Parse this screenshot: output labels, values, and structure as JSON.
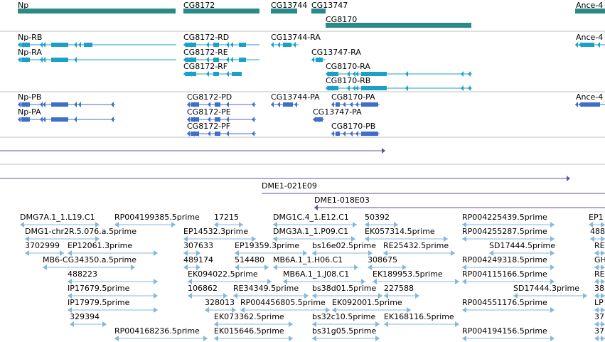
{
  "colors": {
    "gene": "#2a8a86",
    "transcript_mrna": "#1ba0c7",
    "transcript_protein": "#3e6fc9",
    "alignment": "#6a4f9e",
    "est": "#86b8de",
    "divider": "#bfbfbf"
  },
  "icons": [
    "arrow-right-icon",
    "arrow-left-icon"
  ],
  "tracks": {
    "genes": [
      {
        "label": "Np"
      },
      {
        "label": "CG8172"
      },
      {
        "label": "CG13744"
      },
      {
        "label": "CG13747"
      },
      {
        "label": "CG8170"
      },
      {
        "label": "Ance-4"
      }
    ],
    "transcripts": [
      {
        "label": "Np-RB"
      },
      {
        "label": "Np-RA"
      },
      {
        "label": "CG8172-RD"
      },
      {
        "label": "CG8172-RE"
      },
      {
        "label": "CG8172-RF"
      },
      {
        "label": "CG13744-RA"
      },
      {
        "label": "CG13747-RA"
      },
      {
        "label": "CG8170-RA"
      },
      {
        "label": "CG8170-RB"
      },
      {
        "label": "Ance-4"
      }
    ],
    "proteins": [
      {
        "label": "Np-PB"
      },
      {
        "label": "Np-PA"
      },
      {
        "label": "CG8172-PD"
      },
      {
        "label": "CG8172-PE"
      },
      {
        "label": "CG8172-PF"
      },
      {
        "label": "CG13744-PA"
      },
      {
        "label": "CG8170-PA"
      },
      {
        "label": "CG13747-PA"
      },
      {
        "label": "CG8170-PB"
      },
      {
        "label": "Ance-4"
      }
    ],
    "clones": [
      {
        "label": "DME1-021E09"
      },
      {
        "label": "DME1-018E03"
      }
    ],
    "ests": [
      {
        "label": "DMG7A.1_1.L19.C1"
      },
      {
        "label": "RP004199385.5prime"
      },
      {
        "label": "17215"
      },
      {
        "label": "DMG1C.4_1.E12.C1"
      },
      {
        "label": "50392"
      },
      {
        "label": "RP004225439.5prime"
      },
      {
        "label": "EP1"
      },
      {
        "label": "DMG1-chr2R.5.076.a.5prime"
      },
      {
        "label": "EP14532.3prime"
      },
      {
        "label": "DMG3A.1_1.P09.C1"
      },
      {
        "label": "EK057314.5prime"
      },
      {
        "label": "RP004255287.5prime"
      },
      {
        "label": "488"
      },
      {
        "label": "3702999"
      },
      {
        "label": "EP12061.3prime"
      },
      {
        "label": "307633"
      },
      {
        "label": "EP19359.3prime"
      },
      {
        "label": "bs16e02.5prime"
      },
      {
        "label": "RE25432.5prime"
      },
      {
        "label": "SD17444.5prime"
      },
      {
        "label": "RE"
      },
      {
        "label": "MB6-CG34350.a.5prime"
      },
      {
        "label": "489174"
      },
      {
        "label": "514480"
      },
      {
        "label": "MB6A.1_1.H06.C1"
      },
      {
        "label": "308675"
      },
      {
        "label": "RP004249318.5prime"
      },
      {
        "label": "GH"
      },
      {
        "label": "488223"
      },
      {
        "label": "EK094022.5prime"
      },
      {
        "label": "MB6A.1_1.J08.C1"
      },
      {
        "label": "EK189953.5prime"
      },
      {
        "label": "RP004115166.5prime"
      },
      {
        "label": "RE"
      },
      {
        "label": "IP17679.5prime"
      },
      {
        "label": "106862"
      },
      {
        "label": "RE34349.5prime"
      },
      {
        "label": "bs38d01.5prime"
      },
      {
        "label": "227588"
      },
      {
        "label": "SD17444.3prime"
      },
      {
        "label": "38"
      },
      {
        "label": "IP17979.5prime"
      },
      {
        "label": "328013"
      },
      {
        "label": "RP004456805.5prime"
      },
      {
        "label": "EK092001.5prime"
      },
      {
        "label": "RP004551176.5prime"
      },
      {
        "label": "LP"
      },
      {
        "label": "329394"
      },
      {
        "label": "EK073362.5prime"
      },
      {
        "label": "bs32c10.5prime"
      },
      {
        "label": "EK168116.5prime"
      },
      {
        "label": "37"
      },
      {
        "label": "RP004168236.5prime"
      },
      {
        "label": "EK015646.5prime"
      },
      {
        "label": "bs31g05.5prime"
      },
      {
        "label": "RP004194156.5prime"
      },
      {
        "label": "37"
      }
    ]
  }
}
